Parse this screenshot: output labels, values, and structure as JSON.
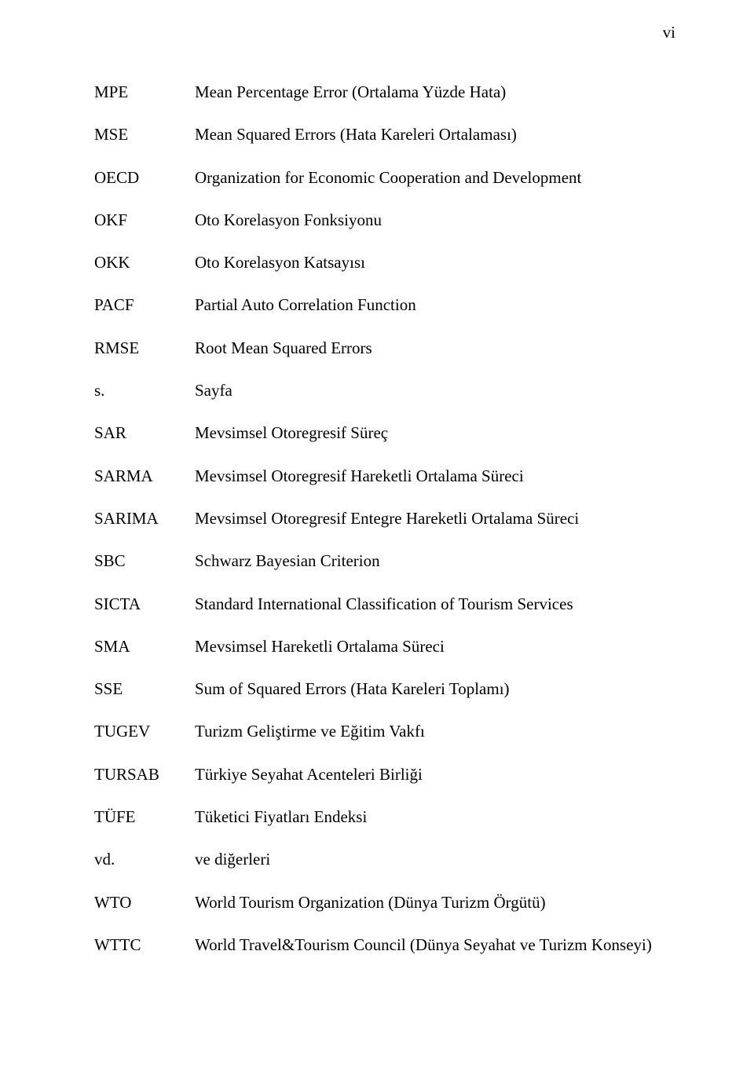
{
  "pageNumber": "vi",
  "fontFamily": "Times New Roman",
  "textColor": "#000000",
  "background": "#ffffff",
  "abbrColumnWidth": 128,
  "rowGap": 27,
  "rows": [
    {
      "abbr": "MPE",
      "def": "Mean Percentage Error (Ortalama Yüzde Hata)"
    },
    {
      "abbr": "MSE",
      "def": "Mean Squared Errors (Hata Kareleri Ortalaması)"
    },
    {
      "abbr": "OECD",
      "def": "Organization for Economic Cooperation and Development"
    },
    {
      "abbr": "OKF",
      "def": "Oto Korelasyon Fonksiyonu"
    },
    {
      "abbr": "OKK",
      "def": "Oto Korelasyon Katsayısı"
    },
    {
      "abbr": "PACF",
      "def": "Partial  Auto Correlation Function"
    },
    {
      "abbr": "RMSE",
      "def": "Root Mean Squared Errors"
    },
    {
      "abbr": "s.",
      "def": "Sayfa"
    },
    {
      "abbr": "SAR",
      "def": "Mevsimsel Otoregresif Süreç"
    },
    {
      "abbr": "SARMA",
      "def": "Mevsimsel Otoregresif Hareketli Ortalama Süreci"
    },
    {
      "abbr": "SARIMA",
      "def": "Mevsimsel Otoregresif Entegre Hareketli Ortalama Süreci"
    },
    {
      "abbr": "SBC",
      "def": "Schwarz Bayesian Criterion"
    },
    {
      "abbr": "SICTA",
      "def": "Standard International Classification of Tourism Services"
    },
    {
      "abbr": "SMA",
      "def": "Mevsimsel Hareketli Ortalama Süreci"
    },
    {
      "abbr": "SSE",
      "def": "Sum of Squared Errors (Hata Kareleri Toplamı)"
    },
    {
      "abbr": "TUGEV",
      "def": "Turizm Geliştirme ve Eğitim Vakfı"
    },
    {
      "abbr": "TURSAB",
      "def": "Türkiye Seyahat Acenteleri Birliği"
    },
    {
      "abbr": "TÜFE",
      "def": "Tüketici Fiyatları Endeksi"
    },
    {
      "abbr": "vd.",
      "def": "ve diğerleri"
    },
    {
      "abbr": "WTO",
      "def": "World Tourism Organization (Dünya Turizm Örgütü)"
    },
    {
      "abbr": "WTTC",
      "def": "World Travel&Tourism Council (Dünya Seyahat ve Turizm Konseyi)"
    }
  ]
}
